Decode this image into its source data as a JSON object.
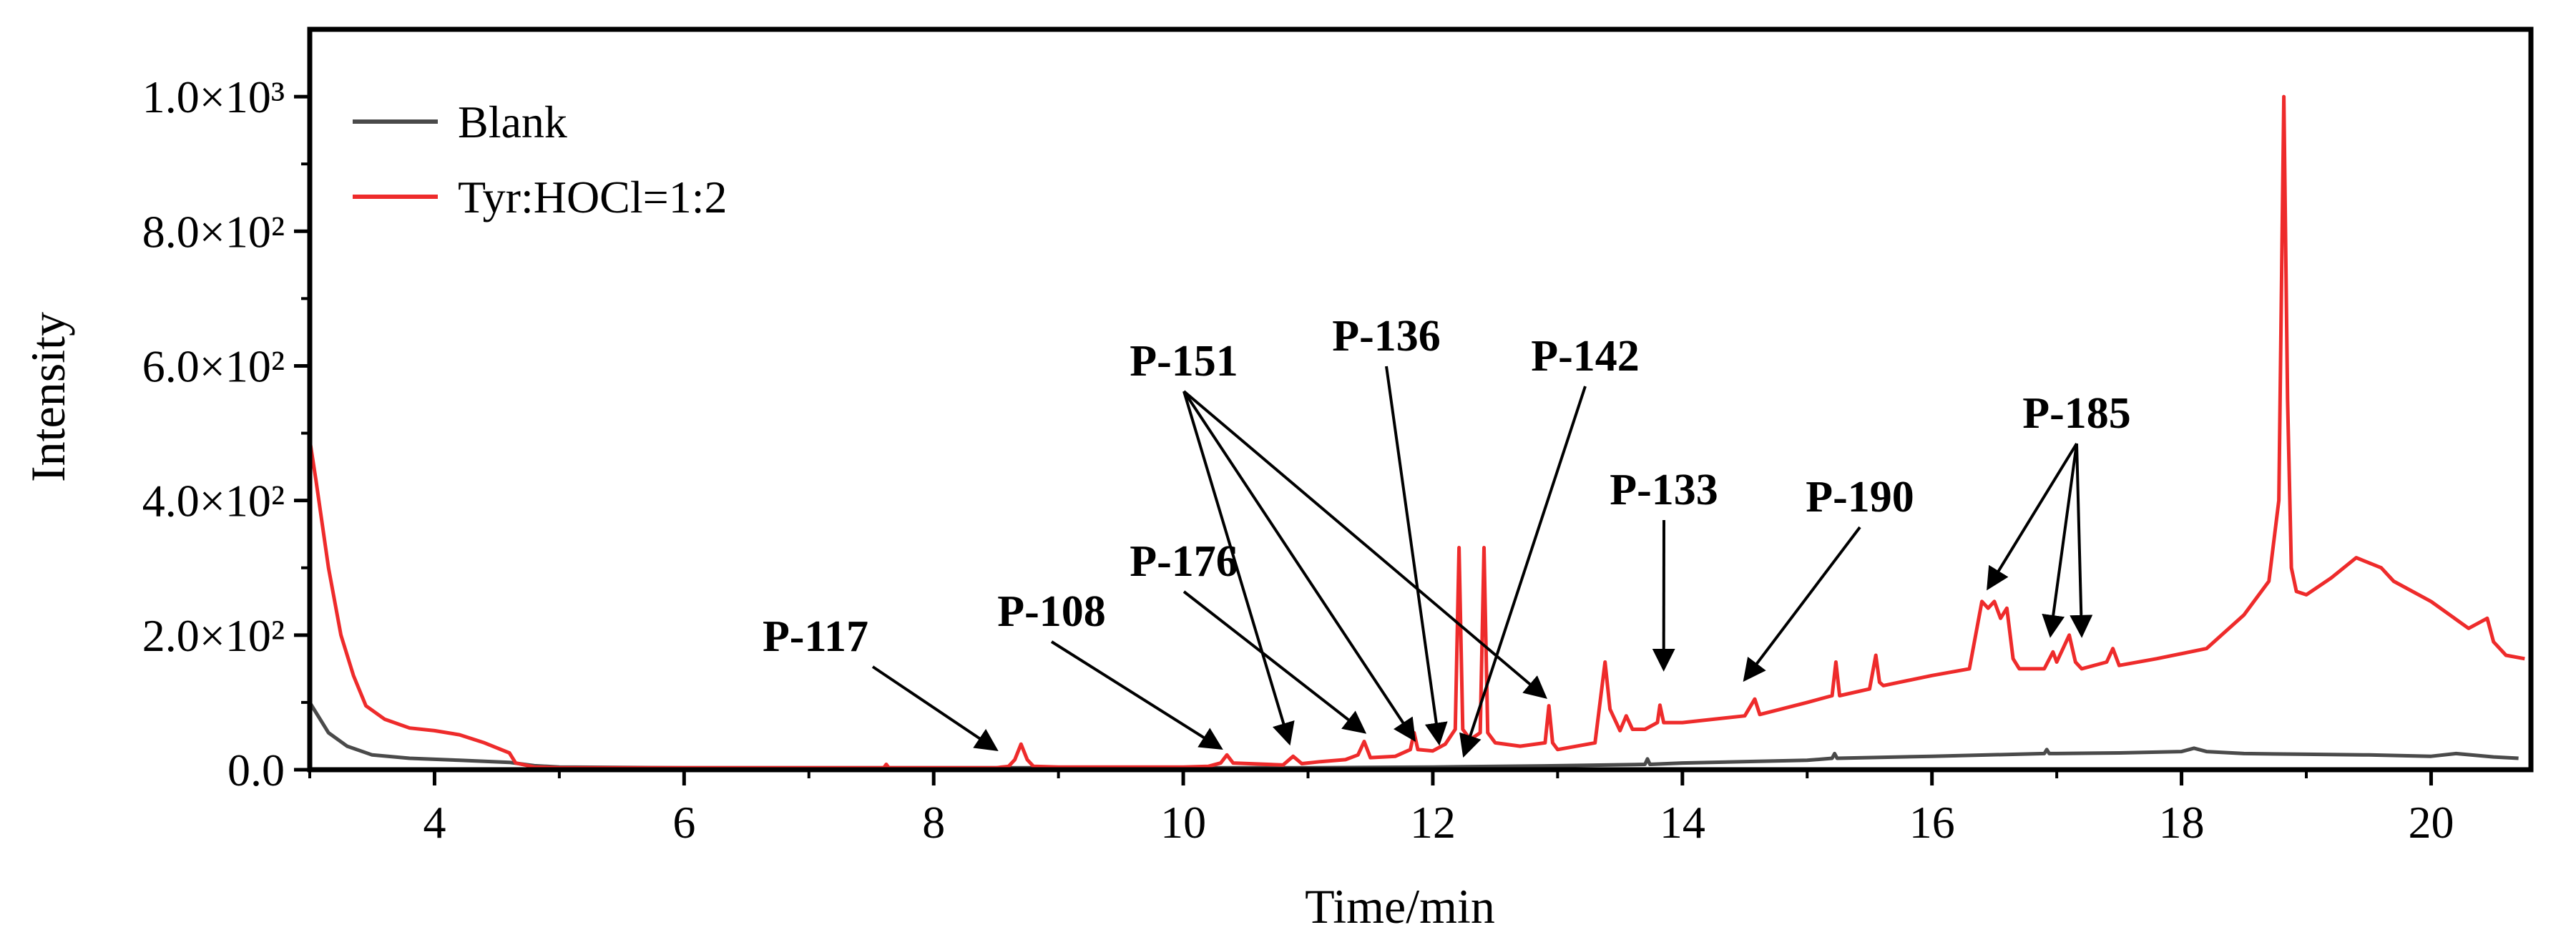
{
  "chart_data": {
    "type": "line",
    "xlabel": "Time/min",
    "ylabel": "Intensity",
    "xlim": [
      3.0,
      20.8
    ],
    "ylim": [
      0,
      1100
    ],
    "x_ticks": [
      4,
      6,
      8,
      10,
      12,
      14,
      16,
      18,
      20
    ],
    "x_tick_labels": [
      "4",
      "6",
      "8",
      "10",
      "12",
      "14",
      "16",
      "18",
      "20"
    ],
    "y_ticks": [
      0,
      200,
      400,
      600,
      800,
      1000
    ],
    "y_tick_labels": [
      "0.0",
      "2.0×10²",
      "4.0×10²",
      "6.0×10²",
      "8.0×10²",
      "1.0×10³"
    ],
    "legend_position": "top-left",
    "series": [
      {
        "name": "Blank",
        "color": "#4a4a4a",
        "x": [
          3.0,
          3.05,
          3.15,
          3.3,
          3.5,
          3.8,
          4.2,
          4.6,
          4.8,
          5.0,
          6.0,
          7.0,
          8.0,
          9.0,
          10.0,
          11.0,
          12.0,
          13.0,
          13.7,
          13.72,
          13.74,
          14.0,
          15.0,
          15.2,
          15.22,
          15.24,
          16.0,
          16.9,
          16.92,
          16.94,
          17.0,
          17.5,
          18.0,
          18.1,
          18.2,
          18.5,
          19.0,
          19.5,
          20.0,
          20.2,
          20.5,
          20.7
        ],
        "y": [
          100,
          85,
          55,
          35,
          22,
          17,
          14,
          11,
          6,
          4,
          3,
          3,
          3,
          3,
          3,
          3,
          4,
          6,
          8,
          16,
          8,
          10,
          14,
          17,
          24,
          17,
          20,
          24,
          30,
          24,
          24,
          25,
          27,
          32,
          27,
          24,
          23,
          22,
          20,
          24,
          19,
          17
        ]
      },
      {
        "name": "Tyr:HOCl=1:2",
        "color": "#ee2b2b",
        "x": [
          3.0,
          3.05,
          3.15,
          3.25,
          3.35,
          3.45,
          3.6,
          3.8,
          4.0,
          4.2,
          4.4,
          4.6,
          4.65,
          4.8,
          5.0,
          6.0,
          7.0,
          7.6,
          7.62,
          7.64,
          8.0,
          8.5,
          8.6,
          8.65,
          8.7,
          8.75,
          8.8,
          9.0,
          10.0,
          10.2,
          10.3,
          10.35,
          10.4,
          10.8,
          10.88,
          10.95,
          11.1,
          11.3,
          11.4,
          11.45,
          11.5,
          11.7,
          11.82,
          11.85,
          11.88,
          12.0,
          12.1,
          12.18,
          12.21,
          12.24,
          12.3,
          12.38,
          12.41,
          12.44,
          12.5,
          12.7,
          12.9,
          12.93,
          12.96,
          13.0,
          13.3,
          13.38,
          13.42,
          13.5,
          13.55,
          13.6,
          13.7,
          13.8,
          13.82,
          13.85,
          14.0,
          14.5,
          14.58,
          14.62,
          15.0,
          15.2,
          15.23,
          15.26,
          15.5,
          15.55,
          15.58,
          15.61,
          16.0,
          16.3,
          16.4,
          16.45,
          16.5,
          16.55,
          16.6,
          16.65,
          16.7,
          16.9,
          16.97,
          17.0,
          17.1,
          17.15,
          17.2,
          17.4,
          17.45,
          17.5,
          17.8,
          18.2,
          18.5,
          18.7,
          18.78,
          18.82,
          18.85,
          18.88,
          18.92,
          19.0,
          19.2,
          19.4,
          19.6,
          19.7,
          20.0,
          20.3,
          20.45,
          20.5,
          20.55,
          20.6,
          20.75
        ],
        "y": [
          490,
          430,
          300,
          200,
          140,
          95,
          75,
          62,
          58,
          52,
          40,
          25,
          10,
          4,
          3,
          3,
          3,
          3,
          8,
          3,
          3,
          3,
          5,
          15,
          38,
          15,
          5,
          4,
          4,
          5,
          10,
          22,
          10,
          7,
          20,
          9,
          12,
          15,
          22,
          42,
          18,
          20,
          30,
          55,
          30,
          28,
          38,
          60,
          330,
          60,
          45,
          55,
          330,
          55,
          40,
          35,
          40,
          95,
          40,
          30,
          40,
          160,
          90,
          58,
          80,
          60,
          60,
          70,
          96,
          70,
          70,
          80,
          105,
          82,
          100,
          110,
          160,
          110,
          120,
          170,
          130,
          125,
          140,
          150,
          250,
          240,
          250,
          225,
          240,
          165,
          150,
          150,
          175,
          160,
          200,
          160,
          150,
          160,
          180,
          155,
          165,
          180,
          230,
          280,
          400,
          1000,
          550,
          300,
          265,
          260,
          285,
          315,
          300,
          280,
          250,
          210,
          225,
          190,
          180,
          170,
          165
        ]
      }
    ],
    "annotations": [
      {
        "label": "P-117",
        "targets": [
          [
            8.5,
            30
          ]
        ]
      },
      {
        "label": "P-108",
        "targets": [
          [
            10.3,
            32
          ]
        ]
      },
      {
        "label": "P-176",
        "targets": [
          [
            11.45,
            56
          ]
        ]
      },
      {
        "label": "P-151",
        "targets": [
          [
            10.85,
            40
          ],
          [
            11.85,
            45
          ],
          [
            12.9,
            108
          ]
        ]
      },
      {
        "label": "P-136",
        "targets": [
          [
            12.05,
            40
          ]
        ]
      },
      {
        "label": "P-142",
        "targets": [
          [
            12.25,
            22
          ]
        ]
      },
      {
        "label": "P-133",
        "targets": [
          [
            13.85,
            150
          ]
        ]
      },
      {
        "label": "P-190",
        "targets": [
          [
            14.5,
            134
          ]
        ]
      },
      {
        "label": "P-185",
        "targets": [
          [
            16.45,
            270
          ],
          [
            16.95,
            200
          ],
          [
            17.2,
            200
          ]
        ]
      }
    ]
  }
}
